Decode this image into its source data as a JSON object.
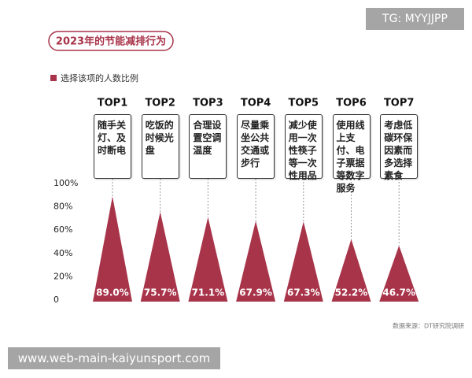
{
  "chart_data": {
    "type": "triangle",
    "title": "2023年的节能减排行为",
    "legend_label": "选择该项的人数比例",
    "categories": [
      "TOP1",
      "TOP2",
      "TOP3",
      "TOP4",
      "TOP5",
      "TOP6",
      "TOP7"
    ],
    "descriptions": [
      "随手关灯、及时断电",
      "吃饭的时候光盘",
      "合理设置空调温度",
      "尽量乘坐公共交通或步行",
      "减少使用一次性筷子等一次性用品",
      "使用线上支付、电子票据等数字服务",
      "考虑低碳环保因素而多选择素食"
    ],
    "values": [
      89.0,
      75.7,
      71.1,
      67.9,
      67.3,
      52.2,
      46.7
    ],
    "value_labels": [
      "89.0%",
      "75.7%",
      "71.1%",
      "67.9%",
      "67.3%",
      "52.2%",
      "46.7%"
    ],
    "color": "#a8344a",
    "ylim": [
      0,
      100
    ],
    "yticks": [
      0,
      {
        "value": 20,
        "label": "20%"
      },
      {
        "value": 40,
        "label": "40%"
      },
      {
        "value": 60,
        "label": "60%"
      },
      {
        "value": 80,
        "label": "80%"
      },
      {
        "value": 100,
        "label": "100%"
      }
    ],
    "grid": false,
    "source": "数据来源：DT研究院调研",
    "watermarks": [
      "TG: MYYJJPP",
      "www.web-main-kaiyunsport.com"
    ]
  }
}
